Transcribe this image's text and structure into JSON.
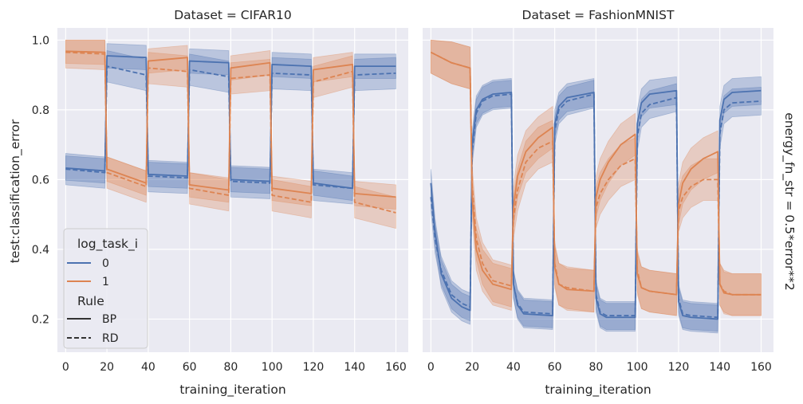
{
  "figure": {
    "ylabel": "test:classification_error",
    "row_label": "energy_fn_str = 0.5*error**2",
    "background": "#eaeaf2",
    "grid_color": "#ffffff"
  },
  "legend": {
    "hue_title": "log_task_i",
    "hue_entries": [
      {
        "label": "0",
        "color": "#4c72b0"
      },
      {
        "label": "1",
        "color": "#dd8452"
      }
    ],
    "style_title": "Rule",
    "style_entries": [
      {
        "label": "BP",
        "dash": "solid"
      },
      {
        "label": "RD",
        "dash": "dashed"
      }
    ]
  },
  "chart_data": [
    {
      "type": "line",
      "title": "Dataset = CIFAR10",
      "xlabel": "training_iteration",
      "ylabel": "test:classification_error",
      "xlim": [
        -4,
        166
      ],
      "ylim": [
        0.105,
        1.035
      ],
      "xticks": [
        0,
        20,
        40,
        60,
        80,
        100,
        120,
        140,
        160
      ],
      "yticks": [
        0.2,
        0.4,
        0.6,
        0.8,
        1.0
      ],
      "ytick_labels": [
        "0.2",
        "0.4",
        "0.6",
        "0.8",
        "1.0"
      ],
      "legend": "lower-left",
      "series": [
        {
          "name": "0",
          "rule": "BP",
          "x": [
            0,
            19,
            20,
            39,
            40,
            59,
            60,
            79,
            80,
            99,
            100,
            119,
            120,
            139,
            140,
            160
          ],
          "y": [
            0.633,
            0.625,
            0.955,
            0.95,
            0.615,
            0.61,
            0.94,
            0.935,
            0.6,
            0.595,
            0.93,
            0.925,
            0.59,
            0.575,
            0.925,
            0.925
          ],
          "band": 0.035
        },
        {
          "name": "0",
          "rule": "RD",
          "x": [
            0,
            19,
            20,
            39,
            40,
            59,
            60,
            79,
            80,
            99,
            100,
            119,
            120,
            139,
            140,
            160
          ],
          "y": [
            0.63,
            0.62,
            0.925,
            0.9,
            0.61,
            0.605,
            0.915,
            0.895,
            0.595,
            0.59,
            0.905,
            0.9,
            0.585,
            0.575,
            0.9,
            0.905
          ],
          "band": 0.045
        },
        {
          "name": "1",
          "rule": "BP",
          "x": [
            0,
            19,
            20,
            39,
            40,
            59,
            60,
            79,
            80,
            99,
            100,
            119,
            120,
            139,
            140,
            160
          ],
          "y": [
            0.968,
            0.965,
            0.63,
            0.59,
            0.94,
            0.95,
            0.585,
            0.57,
            0.92,
            0.935,
            0.575,
            0.56,
            0.915,
            0.93,
            0.56,
            0.55
          ],
          "band": 0.035
        },
        {
          "name": "1",
          "rule": "RD",
          "x": [
            0,
            19,
            20,
            39,
            40,
            59,
            60,
            79,
            80,
            99,
            100,
            119,
            120,
            139,
            140,
            160
          ],
          "y": [
            0.965,
            0.96,
            0.62,
            0.58,
            0.92,
            0.91,
            0.575,
            0.555,
            0.89,
            0.9,
            0.555,
            0.535,
            0.88,
            0.91,
            0.535,
            0.505
          ],
          "band": 0.045
        }
      ]
    },
    {
      "type": "line",
      "title": "Dataset = FashionMNIST",
      "xlabel": "training_iteration",
      "ylabel": "",
      "xlim": [
        -4,
        166
      ],
      "ylim": [
        0.105,
        1.035
      ],
      "xticks": [
        0,
        20,
        40,
        60,
        80,
        100,
        120,
        140,
        160
      ],
      "yticks": [
        0.2,
        0.4,
        0.6,
        0.8,
        1.0
      ],
      "ytick_labels": [
        "",
        "",
        "",
        "",
        ""
      ],
      "series": [
        {
          "name": "0",
          "rule": "BP",
          "x": [
            0,
            2,
            5,
            10,
            15,
            19,
            20,
            22,
            25,
            30,
            39,
            40,
            42,
            45,
            59,
            60,
            62,
            66,
            79,
            80,
            82,
            85,
            99,
            100,
            102,
            106,
            119,
            120,
            122,
            126,
            139,
            140,
            142,
            146,
            160
          ],
          "y": [
            0.59,
            0.45,
            0.33,
            0.26,
            0.235,
            0.225,
            0.7,
            0.8,
            0.83,
            0.845,
            0.85,
            0.3,
            0.24,
            0.215,
            0.21,
            0.76,
            0.81,
            0.835,
            0.85,
            0.26,
            0.215,
            0.205,
            0.205,
            0.76,
            0.82,
            0.845,
            0.855,
            0.25,
            0.21,
            0.205,
            0.2,
            0.77,
            0.83,
            0.85,
            0.855
          ],
          "band": 0.04
        },
        {
          "name": "0",
          "rule": "RD",
          "x": [
            0,
            2,
            5,
            10,
            15,
            19,
            20,
            22,
            25,
            30,
            39,
            40,
            42,
            45,
            59,
            60,
            62,
            66,
            79,
            80,
            82,
            85,
            99,
            100,
            102,
            106,
            119,
            120,
            122,
            126,
            139,
            140,
            142,
            146,
            160
          ],
          "y": [
            0.55,
            0.43,
            0.34,
            0.27,
            0.245,
            0.235,
            0.68,
            0.79,
            0.825,
            0.84,
            0.845,
            0.3,
            0.245,
            0.22,
            0.215,
            0.74,
            0.8,
            0.825,
            0.845,
            0.27,
            0.22,
            0.21,
            0.21,
            0.72,
            0.79,
            0.815,
            0.835,
            0.26,
            0.215,
            0.21,
            0.205,
            0.73,
            0.8,
            0.82,
            0.825
          ],
          "band": 0.04
        },
        {
          "name": "1",
          "rule": "BP",
          "x": [
            0,
            10,
            19,
            20,
            22,
            25,
            30,
            39,
            40,
            42,
            46,
            52,
            59,
            60,
            62,
            66,
            79,
            80,
            82,
            86,
            92,
            99,
            100,
            102,
            106,
            119,
            120,
            122,
            126,
            132,
            139,
            140,
            142,
            146,
            160
          ],
          "y": [
            0.965,
            0.935,
            0.92,
            0.55,
            0.4,
            0.34,
            0.3,
            0.285,
            0.52,
            0.61,
            0.68,
            0.72,
            0.75,
            0.35,
            0.3,
            0.285,
            0.28,
            0.55,
            0.6,
            0.65,
            0.7,
            0.73,
            0.33,
            0.29,
            0.28,
            0.27,
            0.53,
            0.59,
            0.63,
            0.66,
            0.68,
            0.3,
            0.275,
            0.27,
            0.27
          ],
          "band": 0.06
        },
        {
          "name": "1",
          "rule": "RD",
          "x": [
            0,
            10,
            19,
            20,
            22,
            25,
            30,
            39,
            40,
            42,
            46,
            52,
            59,
            60,
            62,
            66,
            79,
            80,
            82,
            86,
            92,
            99,
            100,
            102,
            106,
            119,
            120,
            122,
            126,
            132,
            139,
            140,
            142,
            146,
            160
          ],
          "y": [
            0.965,
            0.935,
            0.92,
            0.58,
            0.43,
            0.36,
            0.31,
            0.295,
            0.49,
            0.57,
            0.65,
            0.69,
            0.71,
            0.36,
            0.3,
            0.29,
            0.28,
            0.52,
            0.56,
            0.6,
            0.64,
            0.66,
            0.34,
            0.29,
            0.28,
            0.27,
            0.51,
            0.55,
            0.58,
            0.6,
            0.6,
            0.3,
            0.28,
            0.27,
            0.27
          ],
          "band": 0.06
        }
      ]
    }
  ]
}
